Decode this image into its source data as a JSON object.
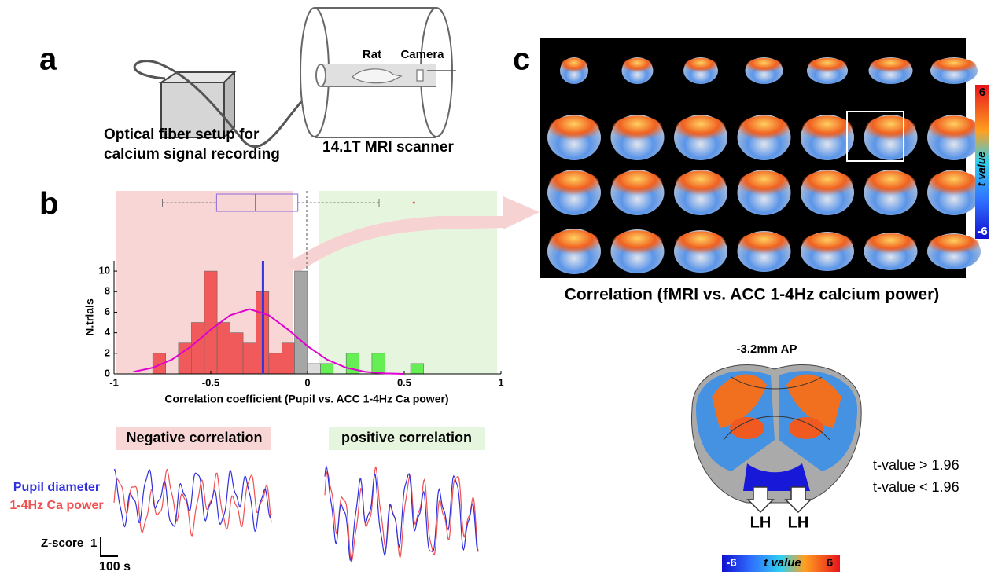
{
  "panel_labels": [
    "a",
    "b",
    "c"
  ],
  "setup": {
    "rat": "Rat",
    "camera": "Camera",
    "fiber": [
      "Optical fiber setup for",
      "calcium signal recording"
    ],
    "scanner": "14.1T MRI scanner"
  },
  "chart_data": {
    "type": "histogram",
    "ylabel": "N.trials",
    "xlabel": "Correlation coefficient (Pupil vs. ACC 1-4Hz Ca power)",
    "bins": [
      -0.8,
      -0.733,
      -0.667,
      -0.6,
      -0.533,
      -0.467,
      -0.4,
      -0.333,
      -0.267,
      -0.2,
      -0.133,
      -0.067,
      0,
      0.067,
      0.133,
      0.2,
      0.267,
      0.333,
      0.4,
      0.467,
      0.533,
      0.6
    ],
    "values": [
      2,
      0,
      3,
      5,
      10,
      5,
      4,
      3,
      8,
      2,
      3,
      10,
      1,
      1,
      0,
      2,
      0,
      2,
      0,
      0,
      1
    ],
    "colors": [
      "#f05a5a",
      "#f05a5a",
      "#f05a5a",
      "#f05a5a",
      "#f05a5a",
      "#f05a5a",
      "#f05a5a",
      "#f05a5a",
      "#f05a5a",
      "#f05a5a",
      "#f05a5a",
      "#a6a6a6",
      "#dcdcdc",
      "#66ee55",
      "#66ee55",
      "#66ee55",
      "#66ee55",
      "#66ee55",
      "#66ee55",
      "#66ee55",
      "#66ee55"
    ],
    "mean_line": {
      "value": -0.23,
      "color": "#3333dd"
    },
    "fit_curve": {
      "color": "#e000d0",
      "x": [
        -0.9,
        -0.8,
        -0.7,
        -0.6,
        -0.5,
        -0.4,
        -0.3,
        -0.2,
        -0.1,
        0,
        0.1,
        0.2,
        0.3,
        0.4,
        0.5
      ],
      "values": [
        0.2,
        0.6,
        1.4,
        2.7,
        4.3,
        5.7,
        6.3,
        5.7,
        4.3,
        2.7,
        1.4,
        0.6,
        0.2,
        0.05,
        0
      ]
    },
    "boxplot": {
      "color": "#8a6adf",
      "median_color": "#e05050",
      "whisker_low": -0.75,
      "q1": -0.47,
      "median": -0.27,
      "q3": -0.05,
      "whisker_high": 0.37,
      "outliers": [
        0.55
      ]
    },
    "xlim": [
      -1,
      1
    ],
    "xticks": [
      -1,
      -0.5,
      0,
      0.5,
      1
    ],
    "ylim": [
      0,
      11
    ],
    "yticks": [
      0,
      2,
      4,
      6,
      8,
      10
    ]
  },
  "examples": {
    "negative": "Negative correlation",
    "positive": "positive correlation",
    "pupil": "Pupil diameter",
    "calcium": "1-4Hz Ca power",
    "zscore": "Z-score",
    "zscale": "1",
    "timescale": "100 s"
  },
  "map": {
    "caption": "Correlation (fMRI vs. ACC 1-4Hz calcium power)",
    "colorbar": {
      "label": "t value",
      "max": "6",
      "min": "-6"
    }
  },
  "slice": {
    "title": "-3.2mm AP",
    "above": "t-value > 1.96",
    "below": "t-value < 1.96",
    "lh": [
      "LH",
      "LH"
    ],
    "colorbar": {
      "min": "-6",
      "label": "t value",
      "max": "6"
    }
  }
}
